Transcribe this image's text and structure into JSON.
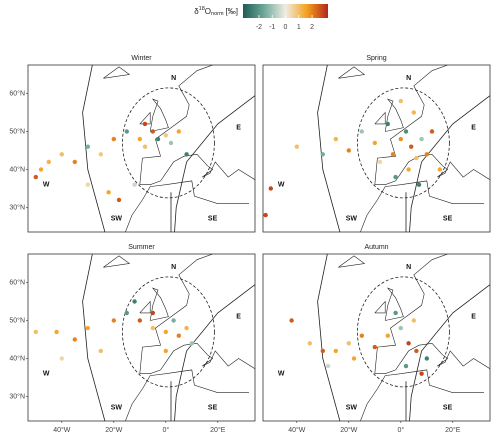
{
  "colorbar": {
    "title": {
      "delta": "δ",
      "sup": "18",
      "o": "O",
      "sub": "norm",
      "unit": "[‰]"
    },
    "lim": [
      -3.2,
      3.2
    ],
    "ticks": [
      -2,
      -1,
      0,
      1,
      2
    ],
    "colors": [
      "#1d5c55",
      "#6fa99a",
      "#efede2",
      "#f4a11e",
      "#b3271c"
    ]
  },
  "axes": {
    "lat_ticks": [
      {
        "value": 60,
        "label": "60°N"
      },
      {
        "value": 50,
        "label": "50°N"
      },
      {
        "value": 40,
        "label": "40°N"
      },
      {
        "value": 30,
        "label": "30°N"
      }
    ],
    "lon_ticks": [
      {
        "value": -40,
        "label": "40°W"
      },
      {
        "value": -20,
        "label": "20°W"
      },
      {
        "value": 0,
        "label": "0°"
      },
      {
        "value": 20,
        "label": "20°E"
      }
    ]
  },
  "sector_labels": [
    "N",
    "E",
    "W",
    "SW",
    "SE"
  ],
  "panels": [
    {
      "title": "Winter",
      "lon": [
        -48,
        -45,
        -40,
        -35,
        -30,
        -25,
        -20,
        -15,
        -10,
        -8,
        -5,
        -3,
        0,
        2,
        5,
        -18,
        -22,
        -12,
        -30,
        -50,
        -8,
        8
      ],
      "lat": [
        40,
        42,
        44,
        42,
        46,
        44,
        48,
        50,
        48,
        46,
        50,
        48,
        49,
        47,
        50,
        32,
        34,
        36,
        36,
        38,
        52,
        44
      ],
      "values": [
        1.5,
        1.2,
        1,
        2,
        -1.5,
        0.8,
        2,
        -2,
        1.5,
        1,
        2.5,
        -2.5,
        0.8,
        -1,
        1.5,
        2.5,
        1.5,
        -0.5,
        0.5,
        2.5,
        2.8,
        -2.5
      ]
    },
    {
      "title": "Spring",
      "lon": [
        -50,
        -52,
        -40,
        -30,
        -25,
        -20,
        -15,
        -10,
        -5,
        -3,
        0,
        2,
        4,
        6,
        8,
        10,
        3,
        -2,
        5,
        12,
        -8,
        7,
        0,
        15
      ],
      "lat": [
        35,
        28,
        46,
        44,
        48,
        45,
        50,
        47,
        52,
        44,
        48,
        50,
        46,
        43,
        48,
        44,
        40,
        38,
        55,
        50,
        42,
        36,
        58,
        40
      ],
      "values": [
        2.8,
        2.8,
        1,
        -1.5,
        1.2,
        2,
        -1,
        1.5,
        -2.5,
        2,
        1.8,
        -2.2,
        2.5,
        1,
        -1,
        2,
        1.5,
        -2,
        1.2,
        2.5,
        0.5,
        -2.5,
        1,
        1.5
      ]
    },
    {
      "title": "Summer",
      "lon": [
        -50,
        -42,
        -35,
        -30,
        -20,
        -10,
        -5,
        0,
        5,
        10,
        -12,
        -15,
        -25,
        0,
        -5,
        8,
        3,
        -40
      ],
      "lat": [
        47,
        47,
        45,
        48,
        50,
        50,
        48,
        47,
        46,
        44,
        55,
        52,
        42,
        42,
        52,
        48,
        50,
        40
      ],
      "values": [
        1,
        1.5,
        2,
        1.5,
        2,
        2.5,
        1,
        1.5,
        2,
        -1,
        -2.5,
        -2,
        1,
        1.5,
        2.8,
        1.2,
        -1.5,
        0.5
      ]
    },
    {
      "title": "Autumn",
      "lon": [
        -42,
        -35,
        -30,
        -25,
        -20,
        -15,
        -10,
        -5,
        0,
        3,
        6,
        10,
        5,
        -2,
        8,
        -18,
        -28,
        2
      ],
      "lat": [
        50,
        44,
        42,
        42,
        44,
        46,
        43,
        46,
        48,
        44,
        42,
        40,
        50,
        52,
        36,
        40,
        38,
        38
      ],
      "values": [
        2.5,
        1,
        2.5,
        1.5,
        1,
        2,
        2.5,
        1.5,
        -1,
        2.8,
        2.5,
        -2.5,
        1,
        -2,
        2.8,
        1.5,
        -0.5,
        -2
      ]
    }
  ]
}
